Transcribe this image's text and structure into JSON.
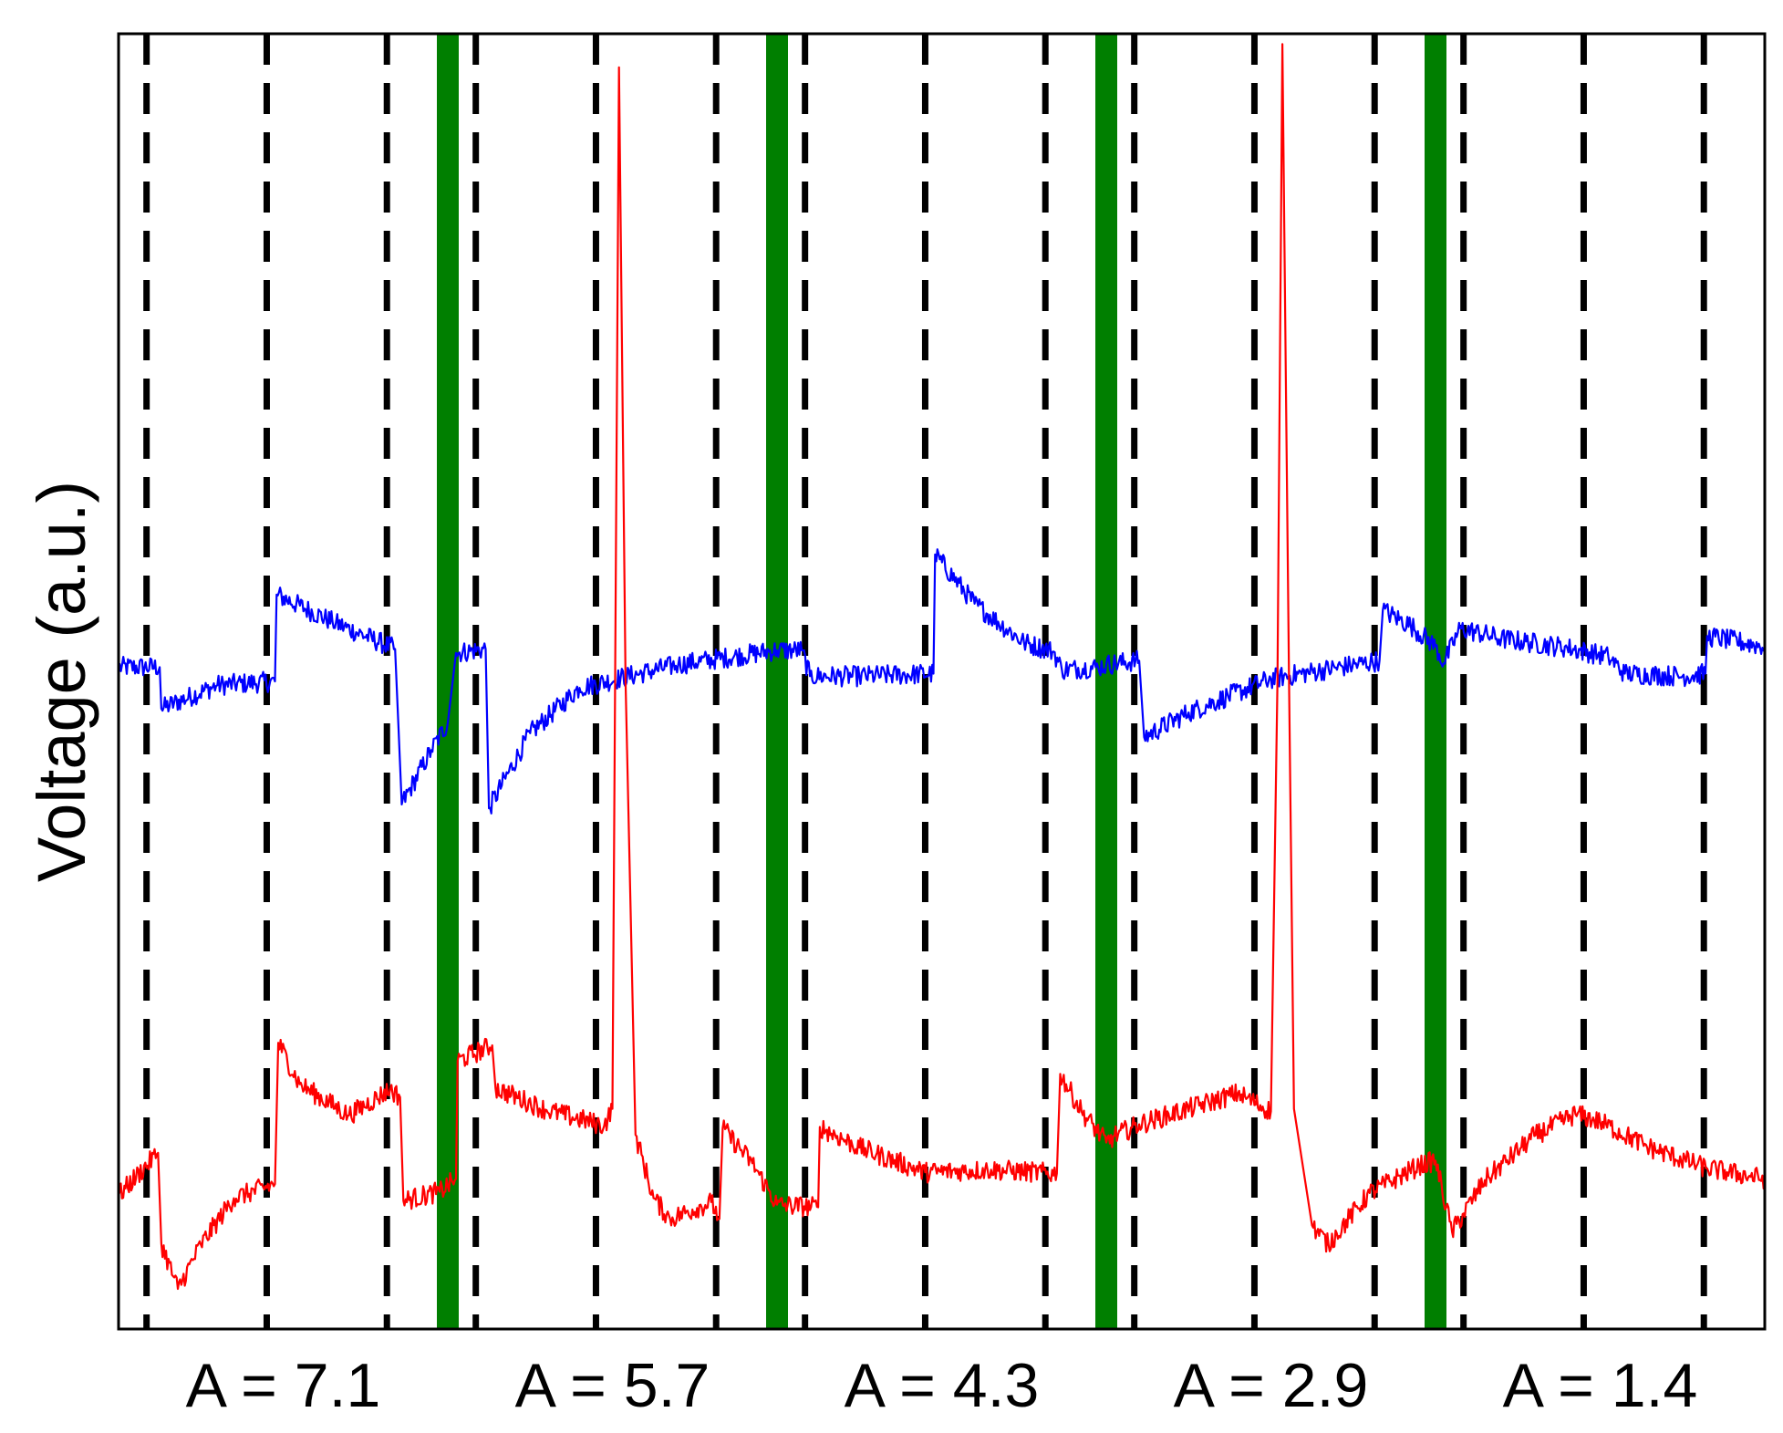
{
  "chart_data": {
    "type": "line",
    "title": "",
    "ylabel": "Voltage (a.u.)",
    "xlabel": "",
    "grid": false,
    "legend": "none",
    "xlim": [
      0,
      100
    ],
    "ylim": [
      0,
      100
    ],
    "ticks_shown": false,
    "segment_labels": [
      "A = 7.1",
      "A = 5.7",
      "A = 4.3",
      "A = 2.9",
      "A = 1.4"
    ],
    "green_boundaries": [
      20,
      40,
      60,
      80
    ],
    "dashed_markers": [
      1.7,
      9.0,
      16.3,
      21.7,
      29.0,
      36.3,
      41.7,
      49.0,
      56.3,
      61.7,
      69.0,
      76.3,
      81.7,
      89.0,
      96.3
    ],
    "colors": {
      "blue_trace": "#0000ff",
      "red_trace": "#ff0000",
      "boundary": "#007f00",
      "marker": "#000000"
    },
    "series": [
      {
        "color": "#0000ff",
        "points": [
          [
            0,
            51.1
          ],
          [
            2.5,
            51.1
          ],
          [
            2.6,
            47.9
          ],
          [
            6,
            49.7
          ],
          [
            9.5,
            50.0
          ],
          [
            9.6,
            56.7
          ],
          [
            13,
            54.6
          ],
          [
            16.8,
            52.5
          ],
          [
            17.2,
            40.5
          ],
          [
            19,
            44.7
          ],
          [
            20,
            46.8
          ],
          [
            20.5,
            52.2
          ],
          [
            22.3,
            52.5
          ],
          [
            22.5,
            40.2
          ],
          [
            25,
            46.0
          ],
          [
            28,
            49.5
          ],
          [
            34,
            51.3
          ],
          [
            40,
            52.4
          ],
          [
            41.5,
            52.4
          ],
          [
            42.0,
            50.4
          ],
          [
            45,
            50.4
          ],
          [
            49.5,
            50.6
          ],
          [
            49.6,
            59.8
          ],
          [
            52,
            56.0
          ],
          [
            55,
            53.0
          ],
          [
            56.8,
            52.3
          ],
          [
            57.3,
            50.9
          ],
          [
            59.5,
            51.1
          ],
          [
            60,
            51.3
          ],
          [
            62,
            51.6
          ],
          [
            62.3,
            45.7
          ],
          [
            65,
            47.6
          ],
          [
            70,
            50.2
          ],
          [
            76.6,
            51.6
          ],
          [
            76.8,
            55.5
          ],
          [
            78.5,
            54.3
          ],
          [
            80,
            52.7
          ],
          [
            80.5,
            51.4
          ],
          [
            81.5,
            54.1
          ],
          [
            84,
            53.3
          ],
          [
            88,
            52.6
          ],
          [
            90.5,
            51.9
          ],
          [
            91.5,
            50.6
          ],
          [
            95,
            50.4
          ],
          [
            96.4,
            50.6
          ],
          [
            96.5,
            53.5
          ],
          [
            100,
            52.7
          ]
        ]
      },
      {
        "color": "#ff0000",
        "points": [
          [
            0,
            10.3
          ],
          [
            2.4,
            13.6
          ],
          [
            2.6,
            6.6
          ],
          [
            3.6,
            3.1
          ],
          [
            5,
            6.5
          ],
          [
            7,
            10.1
          ],
          [
            9.5,
            11.2
          ],
          [
            9.7,
            22.1
          ],
          [
            11,
            18.9
          ],
          [
            14,
            16.5
          ],
          [
            16.5,
            18.5
          ],
          [
            17.1,
            17.9
          ],
          [
            17.3,
            9.9
          ],
          [
            19.5,
            10.6
          ],
          [
            20.5,
            11.6
          ],
          [
            20.6,
            20.7
          ],
          [
            22.7,
            21.9
          ],
          [
            22.9,
            18.6
          ],
          [
            26,
            16.9
          ],
          [
            29.5,
            15.7
          ],
          [
            30.0,
            17.0
          ],
          [
            30.4,
            97.4
          ],
          [
            30.8,
            50.0
          ],
          [
            31.4,
            15.0
          ],
          [
            32.5,
            10.1
          ],
          [
            33.5,
            8.5
          ],
          [
            36,
            9.8
          ],
          [
            36.5,
            8.5
          ],
          [
            36.7,
            15.5
          ],
          [
            38.5,
            12.8
          ],
          [
            40,
            9.6
          ],
          [
            42.5,
            9.4
          ],
          [
            42.6,
            15.6
          ],
          [
            45,
            14.0
          ],
          [
            49,
            12.1
          ],
          [
            53,
            12.3
          ],
          [
            57,
            12.0
          ],
          [
            57.2,
            19.7
          ],
          [
            58.5,
            16.8
          ],
          [
            60,
            14.4
          ],
          [
            60.5,
            14.9
          ],
          [
            62,
            15.8
          ],
          [
            68,
            18.2
          ],
          [
            70,
            16.8
          ],
          [
            70.4,
            50.0
          ],
          [
            70.7,
            99.2
          ],
          [
            71.1,
            50.0
          ],
          [
            71.4,
            17.0
          ],
          [
            72.5,
            8.0
          ],
          [
            73.5,
            6.5
          ],
          [
            74,
            7.4
          ],
          [
            76,
            10.5
          ],
          [
            79,
            12.6
          ],
          [
            80,
            13.0
          ],
          [
            81,
            7.5
          ],
          [
            83,
            11.5
          ],
          [
            86,
            14.9
          ],
          [
            88.5,
            16.6
          ],
          [
            90,
            16.0
          ],
          [
            93,
            14.0
          ],
          [
            96.5,
            12.4
          ],
          [
            100,
            11.6
          ]
        ]
      }
    ]
  }
}
